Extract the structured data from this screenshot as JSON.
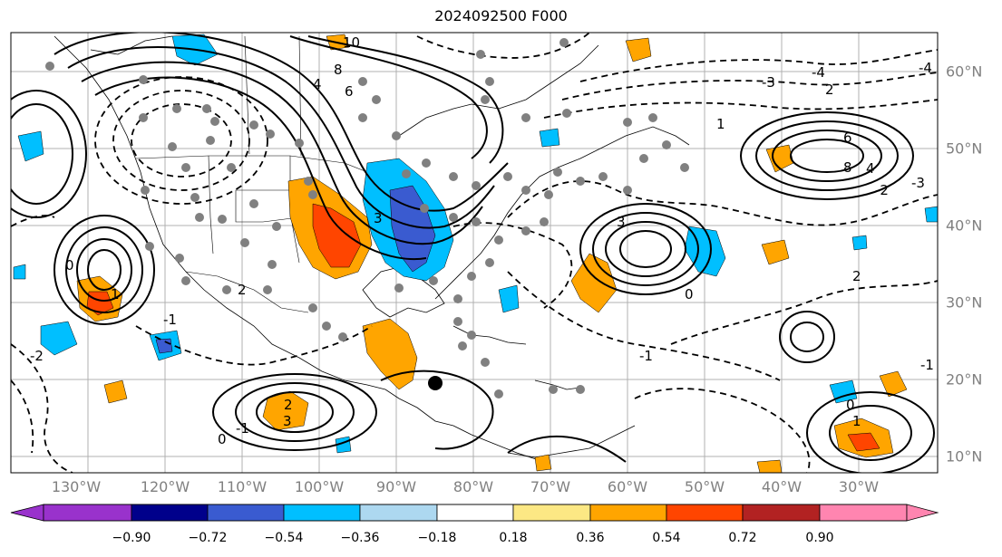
{
  "title": "2024092500 F000",
  "lon_labels": [
    "130°W",
    "120°W",
    "110°W",
    "100°W",
    "90°W",
    "80°W",
    "70°W",
    "60°W",
    "50°W",
    "40°W",
    "30°W"
  ],
  "lat_labels": [
    "60°N",
    "50°N",
    "40°N",
    "30°N",
    "20°N",
    "10°N"
  ],
  "colorbar": {
    "ticks": [
      "−0.90",
      "−0.72",
      "−0.54",
      "−0.36",
      "−0.18",
      "0.18",
      "0.36",
      "0.54",
      "0.72",
      "0.90"
    ],
    "colors": [
      "#9932cc",
      "#00008b",
      "#3a5bd0",
      "#00bfff",
      "#add8f0",
      "#ffffff",
      "#fce884",
      "#ffa500",
      "#ff4500",
      "#b22222",
      "#ff85b0"
    ]
  },
  "contour_labels": [
    "10",
    "8",
    "6",
    "4",
    "3",
    "2",
    "1",
    "0",
    "-1",
    "-2",
    "-3",
    "-4",
    "3",
    "2",
    "6",
    "8",
    "4",
    "1",
    "0",
    "-1",
    "2",
    "-2",
    "-3",
    "-4",
    "-1",
    "0",
    "1",
    "2",
    "3",
    "-1",
    "0"
  ],
  "colors": {
    "positive_fill": "#ffa500",
    "strong_positive": "#ff4500",
    "negative_fill": "#00bfff",
    "strong_negative": "#3a5bd0",
    "marker_dot": "#808080",
    "center_dot": "#000000"
  }
}
